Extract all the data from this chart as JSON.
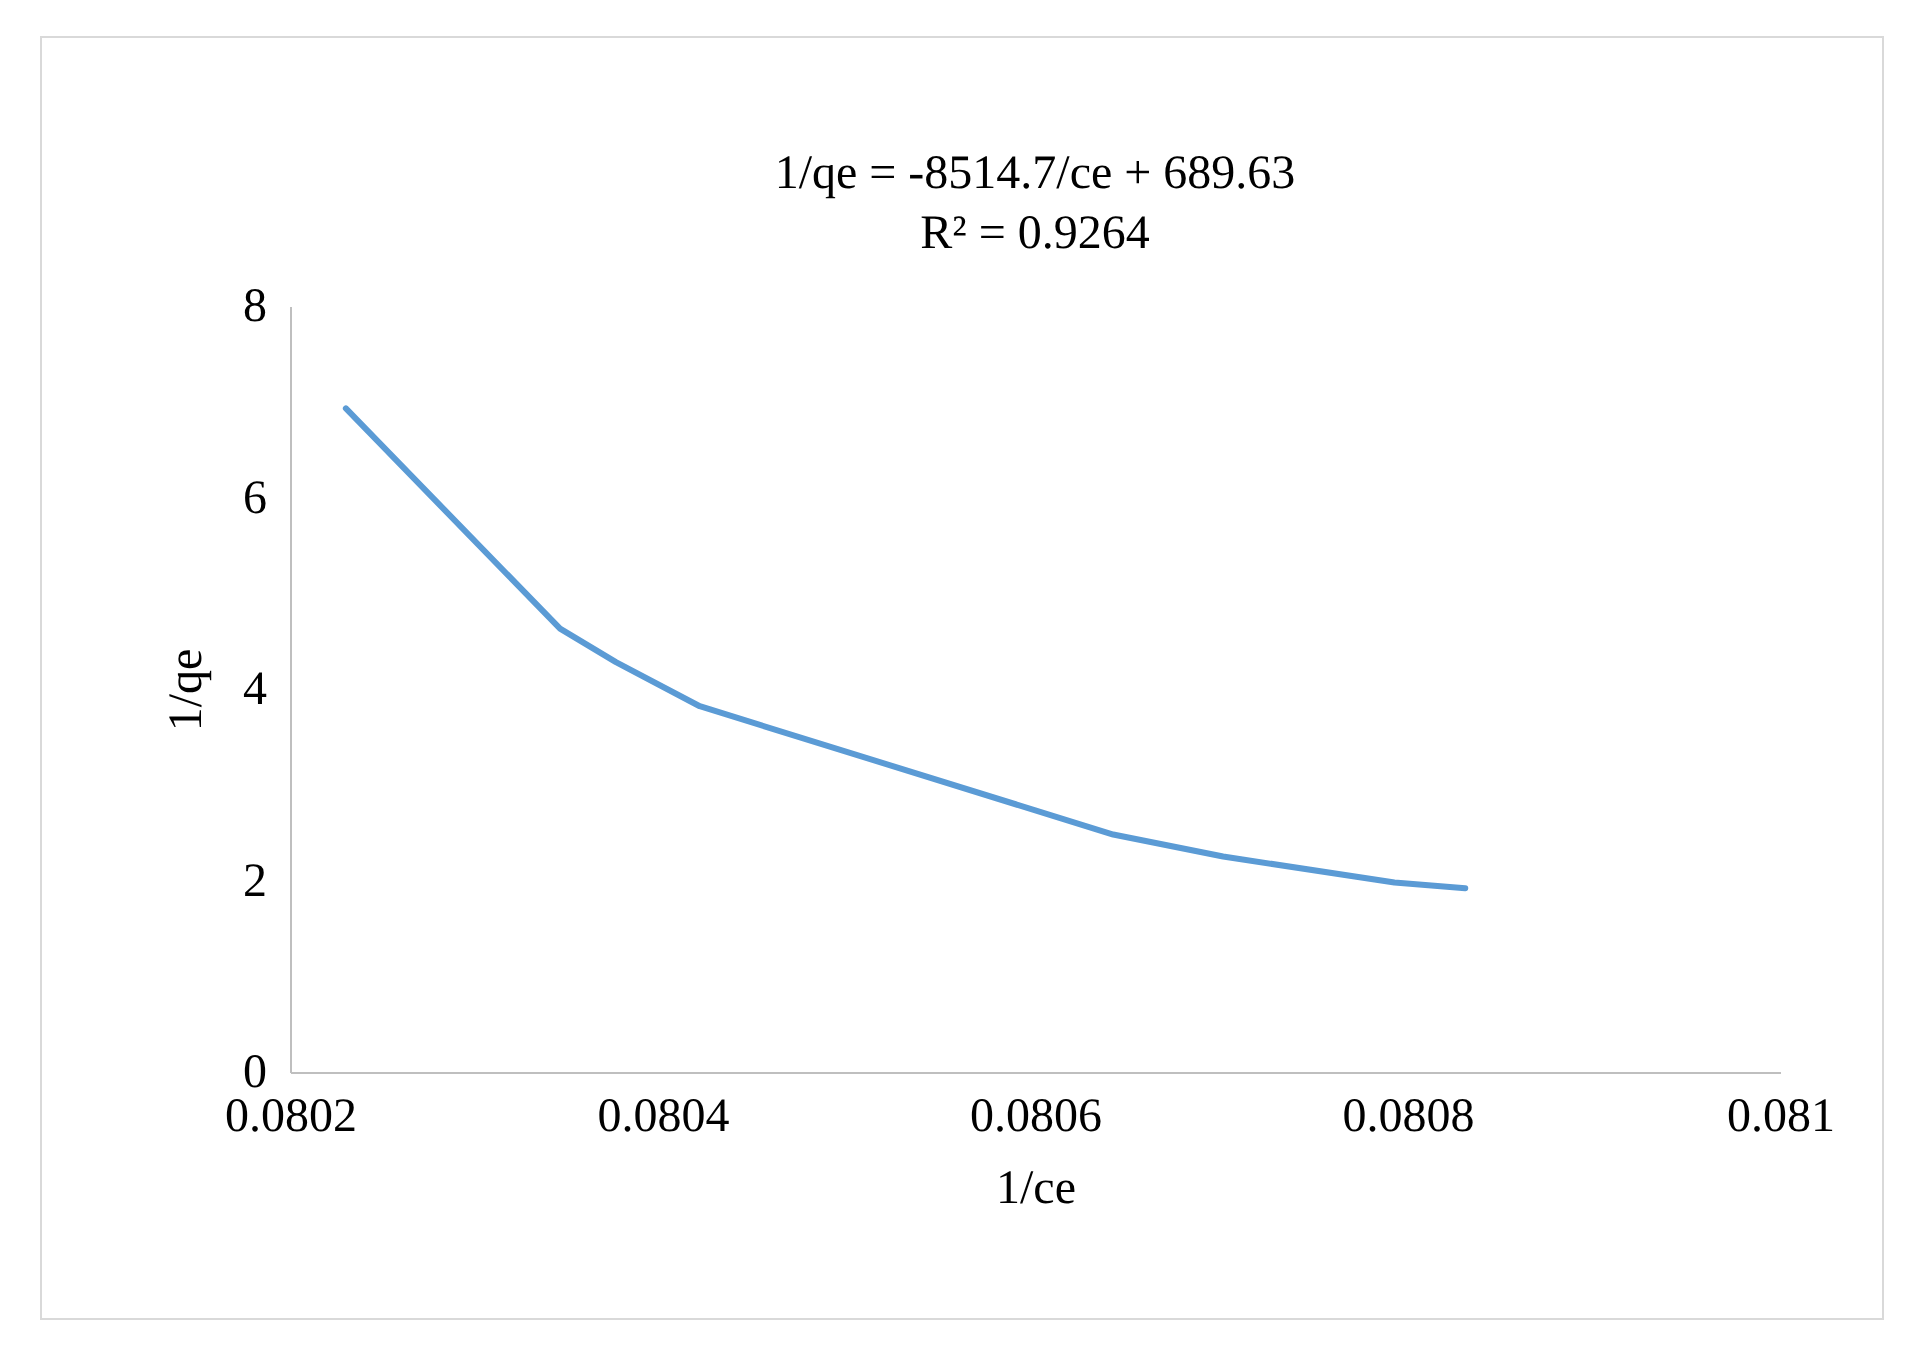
{
  "chart_data": {
    "type": "line",
    "title": "1/qe = -8514.7/ce + 689.63",
    "subtitle": "R² = 0.9264",
    "xlabel": "1/ce",
    "ylabel": "1/qe",
    "x": [
      0.08023,
      0.080345,
      0.080375,
      0.08042,
      0.080642,
      0.080701,
      0.080793,
      0.080831
    ],
    "series": [
      {
        "color": "#5b9bd5",
        "values": [
          6.93,
          4.63,
          4.28,
          3.82,
          2.48,
          2.25,
          1.98,
          1.92
        ]
      }
    ],
    "xlim": [
      0.0802,
      0.081
    ],
    "xticks": [
      0.0802,
      0.0804,
      0.0806,
      0.0808,
      0.081
    ],
    "ylim": [
      0,
      8
    ],
    "yticks": [
      0,
      2,
      4,
      6,
      8
    ],
    "grid": false,
    "legend": false,
    "marker": "none",
    "line_style": "solid"
  }
}
